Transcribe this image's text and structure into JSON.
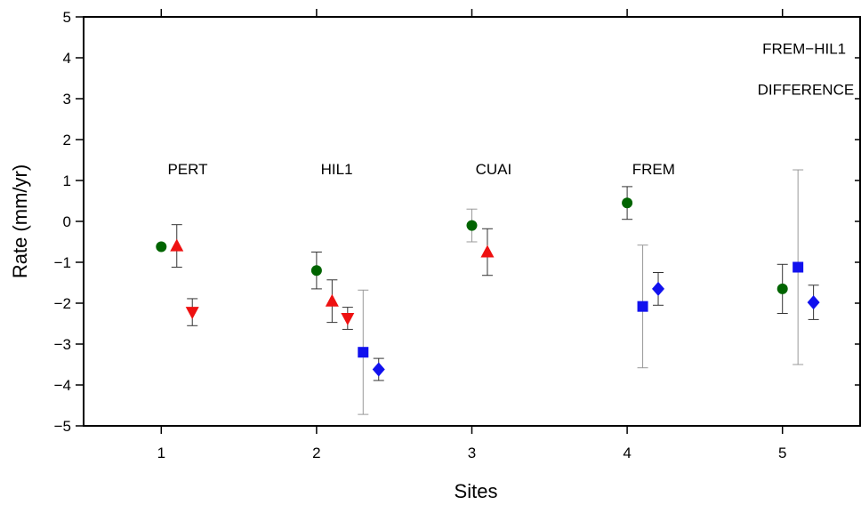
{
  "chart_data": {
    "type": "scatter",
    "xlabel": "Sites",
    "ylabel": "Rate (mm/yr)",
    "xlim": [
      0.5,
      5.5
    ],
    "ylim": [
      -5,
      5
    ],
    "x_ticks": [
      "1",
      "2",
      "3",
      "4",
      "5"
    ],
    "y_ticks": [
      "5",
      "4",
      "3",
      "2",
      "1",
      "0",
      "−1",
      "−2",
      "−3",
      "−4",
      "−5"
    ],
    "grid": false,
    "colors": {
      "circle": "#006400",
      "triangle-up": "#ee1111",
      "triangle-down": "#ee1111",
      "square": "#1111ee",
      "diamond": "#1111ee",
      "errorbar_dark": "#333333",
      "errorbar_light": "#999999"
    },
    "site_labels": [
      {
        "text": "PERT",
        "x": 1.17,
        "y": 1.15
      },
      {
        "text": "HIL1",
        "x": 2.13,
        "y": 1.15
      },
      {
        "text": "CUAI",
        "x": 3.14,
        "y": 1.15
      },
      {
        "text": "FREM",
        "x": 4.17,
        "y": 1.15
      }
    ],
    "annotations": [
      {
        "text": "FREM−HIL1",
        "x": 5.14,
        "y": 4.1
      },
      {
        "text": "DIFFERENCE",
        "x": 5.15,
        "y": 3.1
      }
    ],
    "series": [
      {
        "marker": "circle",
        "points": [
          {
            "x": 1.0,
            "y": -0.62,
            "err": null,
            "bar": "dark"
          },
          {
            "x": 2.0,
            "y": -1.2,
            "err": 0.45,
            "bar": "dark"
          },
          {
            "x": 3.0,
            "y": -0.1,
            "err": 0.4,
            "bar": "light"
          },
          {
            "x": 4.0,
            "y": 0.45,
            "err": 0.4,
            "bar": "dark"
          },
          {
            "x": 5.0,
            "y": -1.65,
            "err": 0.6,
            "bar": "dark"
          }
        ]
      },
      {
        "marker": "triangle-up",
        "points": [
          {
            "x": 1.1,
            "y": -0.6,
            "err": 0.52,
            "bar": "dark"
          },
          {
            "x": 2.1,
            "y": -1.95,
            "err": 0.52,
            "bar": "dark"
          },
          {
            "x": 3.1,
            "y": -0.75,
            "err": 0.57,
            "bar": "dark"
          }
        ]
      },
      {
        "marker": "triangle-down",
        "points": [
          {
            "x": 1.2,
            "y": -2.22,
            "err": 0.33,
            "bar": "dark"
          },
          {
            "x": 2.2,
            "y": -2.37,
            "err": 0.27,
            "bar": "dark"
          }
        ]
      },
      {
        "marker": "square",
        "points": [
          {
            "x": 2.3,
            "y": -3.2,
            "err": 1.52,
            "bar": "light"
          },
          {
            "x": 4.1,
            "y": -2.08,
            "err": 1.5,
            "bar": "light"
          },
          {
            "x": 5.1,
            "y": -1.12,
            "err": 2.38,
            "bar": "light"
          }
        ]
      },
      {
        "marker": "diamond",
        "points": [
          {
            "x": 2.4,
            "y": -3.62,
            "err": 0.27,
            "bar": "dark"
          },
          {
            "x": 4.2,
            "y": -1.65,
            "err": 0.4,
            "bar": "dark"
          },
          {
            "x": 5.2,
            "y": -1.98,
            "err": 0.42,
            "bar": "dark"
          }
        ]
      }
    ]
  }
}
